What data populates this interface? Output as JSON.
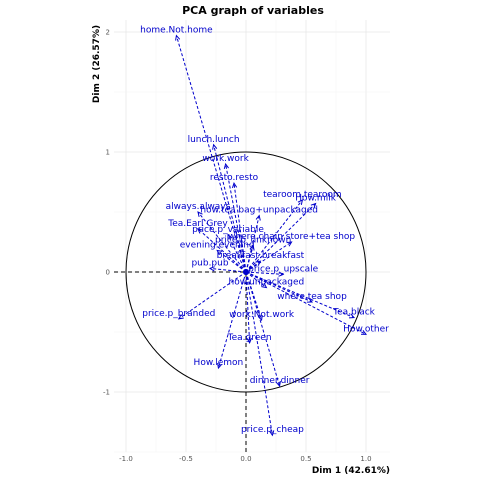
{
  "chart_data": {
    "type": "scatter",
    "title": "PCA graph of variables",
    "xlabel": "Dim 1 (42.61%)",
    "ylabel": "Dim 2 (26.57%)",
    "xlim": [
      -1.1,
      1.2
    ],
    "ylim": [
      -1.5,
      2.1
    ],
    "x_ticks": [
      -1.0,
      -0.5,
      0.0,
      0.5,
      1.0
    ],
    "x_tick_labels": [
      "-1.0",
      "-0.5",
      "0.0",
      "0.5",
      "1.0"
    ],
    "y_ticks": [
      -1,
      0,
      1,
      2
    ],
    "y_tick_labels": [
      "-1",
      "0",
      "1",
      "2"
    ],
    "grid": true,
    "unit_circle": true,
    "arrow_color": "#0000cc",
    "variables": [
      {
        "name": "home.Not.home",
        "x": -0.58,
        "y": 1.97
      },
      {
        "name": "lunch.lunch",
        "x": -0.27,
        "y": 1.06
      },
      {
        "name": "work.work",
        "x": -0.17,
        "y": 0.9
      },
      {
        "name": "resto.resto",
        "x": -0.1,
        "y": 0.74
      },
      {
        "name": "tearoom.tearoom",
        "x": 0.47,
        "y": 0.6
      },
      {
        "name": "How.milk",
        "x": 0.58,
        "y": 0.57
      },
      {
        "name": "how.tea bag+unpackaged",
        "x": 0.11,
        "y": 0.47
      },
      {
        "name": "always.always",
        "x": -0.4,
        "y": 0.5
      },
      {
        "name": "Tea.Earl Grey",
        "x": -0.4,
        "y": 0.36
      },
      {
        "name": "price.p_variable",
        "x": -0.15,
        "y": 0.31
      },
      {
        "name": "where.chain store+tea shop",
        "x": 0.38,
        "y": 0.25
      },
      {
        "name": "price.p_unknown",
        "x": 0.06,
        "y": 0.22
      },
      {
        "name": "evening.evening",
        "x": -0.24,
        "y": 0.18
      },
      {
        "name": "breakfast.breakfast",
        "x": 0.12,
        "y": 0.09
      },
      {
        "name": "pub.pub",
        "x": -0.3,
        "y": 0.03
      },
      {
        "name": "price.p_upscale",
        "x": 0.31,
        "y": -0.02
      },
      {
        "name": "how.unpackaged",
        "x": 0.17,
        "y": -0.13
      },
      {
        "name": "where.tea shop",
        "x": 0.55,
        "y": -0.25
      },
      {
        "name": "Tea.black",
        "x": 0.9,
        "y": -0.38
      },
      {
        "name": "How.other",
        "x": 1.0,
        "y": -0.52
      },
      {
        "name": "work.Not.work",
        "x": 0.13,
        "y": -0.4
      },
      {
        "name": "price.p_branded",
        "x": -0.56,
        "y": -0.39
      },
      {
        "name": "Tea.green",
        "x": 0.03,
        "y": -0.59
      },
      {
        "name": "How.lemon",
        "x": -0.23,
        "y": -0.8
      },
      {
        "name": "dinner.dinner",
        "x": 0.28,
        "y": -0.95
      },
      {
        "name": "price.p_cheap",
        "x": 0.22,
        "y": -1.36
      }
    ]
  }
}
